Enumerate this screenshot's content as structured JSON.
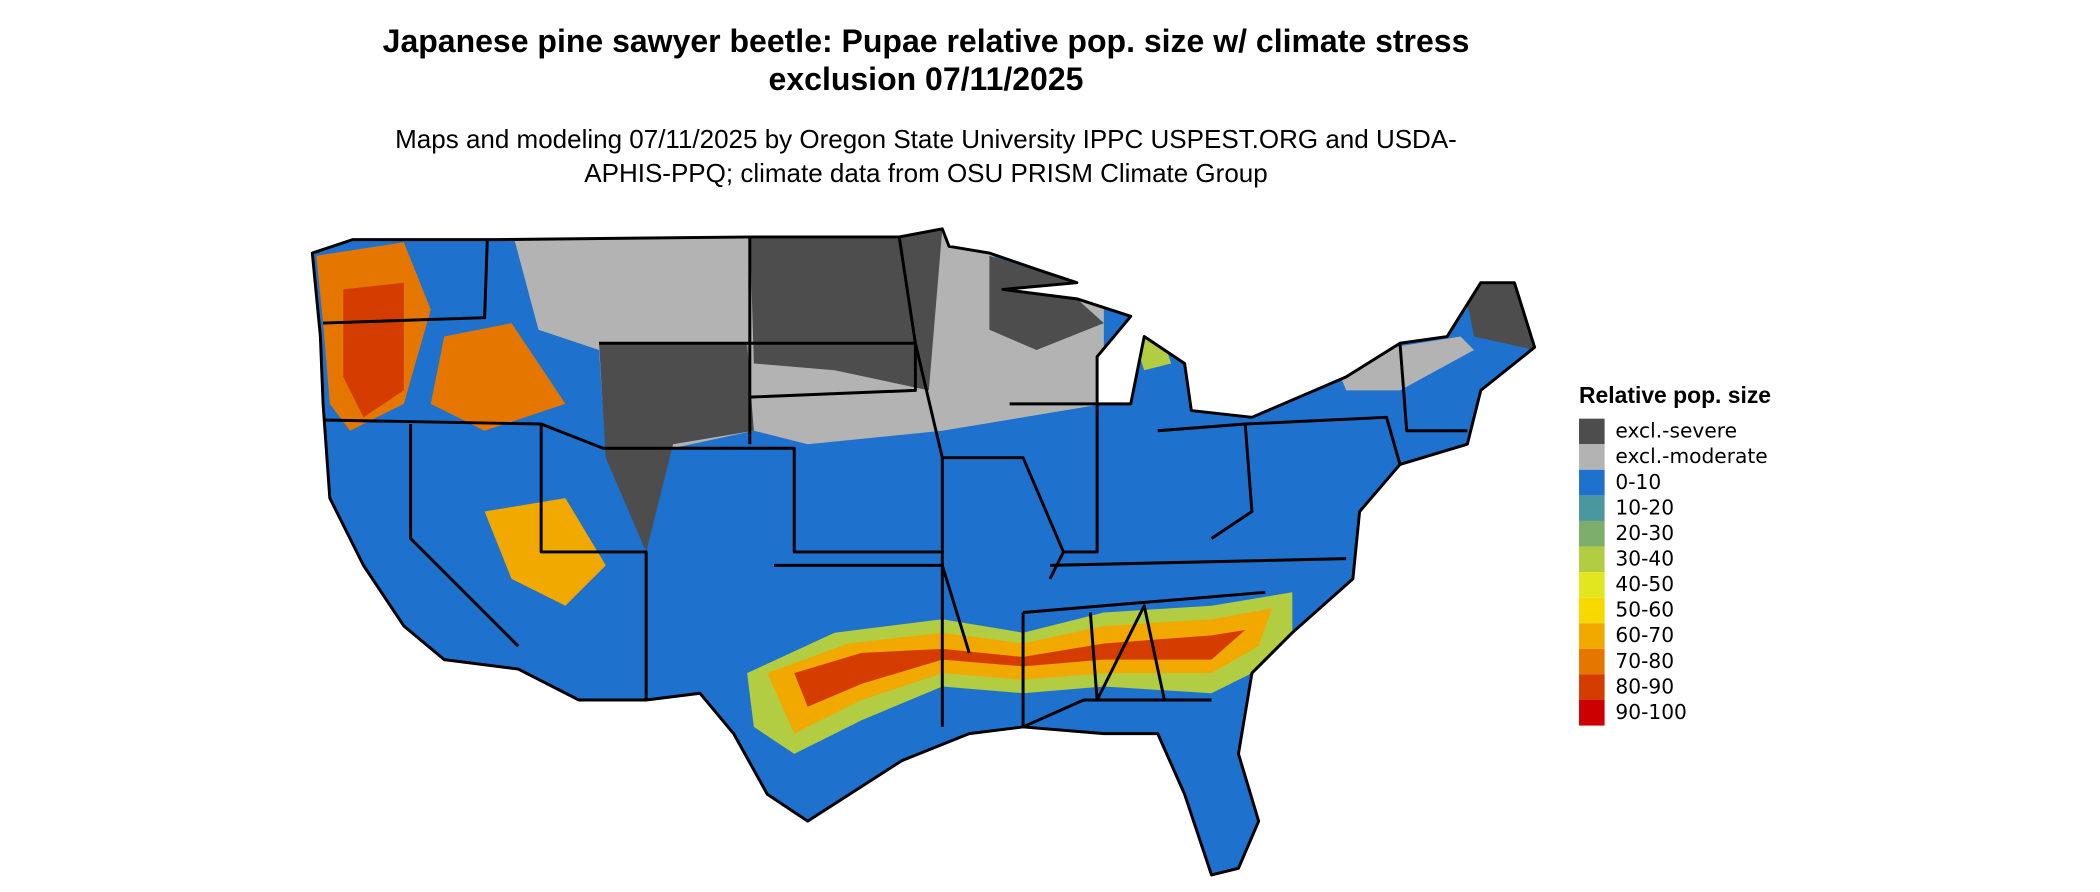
{
  "title": "Japanese pine sawyer beetle: Pupae relative pop. size w/ climate stress exclusion 07/11/2025",
  "subtitle": "Maps and modeling 07/11/2025 by Oregon State University IPPC USPEST.ORG and USDA-APHIS-PPQ; climate data from OSU PRISM Climate Group",
  "legend": {
    "title": "Relative pop. size",
    "items": [
      {
        "label": "excl.-severe",
        "color": "#4d4d4d"
      },
      {
        "label": "excl.-moderate",
        "color": "#b3b3b3"
      },
      {
        "label": "0-10",
        "color": "#1e71cd"
      },
      {
        "label": "10-20",
        "color": "#4a979f"
      },
      {
        "label": "20-30",
        "color": "#7dae6c"
      },
      {
        "label": "30-40",
        "color": "#b2cd42"
      },
      {
        "label": "40-50",
        "color": "#e2e61e"
      },
      {
        "label": "50-60",
        "color": "#f7d900"
      },
      {
        "label": "60-70",
        "color": "#f1a900"
      },
      {
        "label": "70-80",
        "color": "#e57700"
      },
      {
        "label": "80-90",
        "color": "#d53c00"
      },
      {
        "label": "90-100",
        "color": "#cc0000"
      }
    ]
  }
}
